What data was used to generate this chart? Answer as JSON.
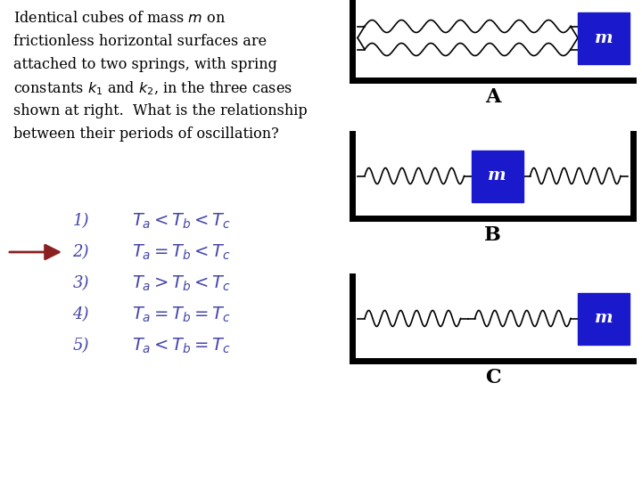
{
  "bg_color": "#ffffff",
  "text_color": "#000000",
  "blue_color": "#1a1acc",
  "arrow_color": "#8b2020",
  "italic_color": "#4444aa",
  "diagram_label_color": "#000000",
  "title_text_lines": [
    "Identical cubes of mass $m$ on",
    "frictionless horizontal surfaces are",
    "attached to two springs, with spring",
    "constants $k_1$ and $k_2$, in the three cases",
    "shown at right.  What is the relationship",
    "between their periods of oscillation?"
  ],
  "choices": [
    [
      "1)",
      "$T_a < T_b < T_c$"
    ],
    [
      "2)",
      "$T_a = T_b < T_c$"
    ],
    [
      "3)",
      "$T_a > T_b < T_c$"
    ],
    [
      "4)",
      "$T_a = T_b = T_c$"
    ],
    [
      "5)",
      "$T_a < T_b = T_c$"
    ]
  ],
  "answer_row": 1
}
